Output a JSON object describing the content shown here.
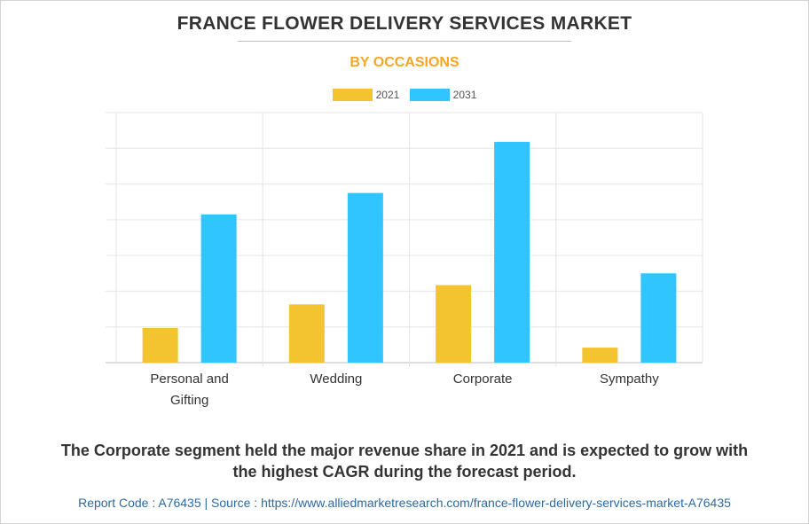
{
  "chart_data": {
    "type": "bar",
    "title": "FRANCE FLOWER DELIVERY SERVICES MARKET",
    "subtitle": "BY OCCASIONS",
    "categories": [
      [
        "Personal and",
        "Gifting"
      ],
      [
        "Wedding"
      ],
      [
        "Corporate"
      ],
      [
        "Sympathy"
      ]
    ],
    "series": [
      {
        "name": "2021",
        "color": "#f4c430",
        "values": [
          9.7,
          16.3,
          21.7,
          4.2
        ]
      },
      {
        "name": "2031",
        "color": "#30c5ff",
        "values": [
          41.5,
          47.5,
          61.8,
          25.0
        ]
      }
    ],
    "ylim": [
      0,
      70
    ],
    "gridlines": 7,
    "legend_position": "top-center",
    "xlabel": "",
    "ylabel": ""
  },
  "caption": {
    "line1": "The Corporate segment held the major revenue share in 2021 and is expected to grow with",
    "line2": "the highest CAGR during the forecast period."
  },
  "footer": {
    "text": "Report Code : A76435  |  Source : https://www.alliedmarketresearch.com/france-flower-delivery-services-market-A76435"
  }
}
